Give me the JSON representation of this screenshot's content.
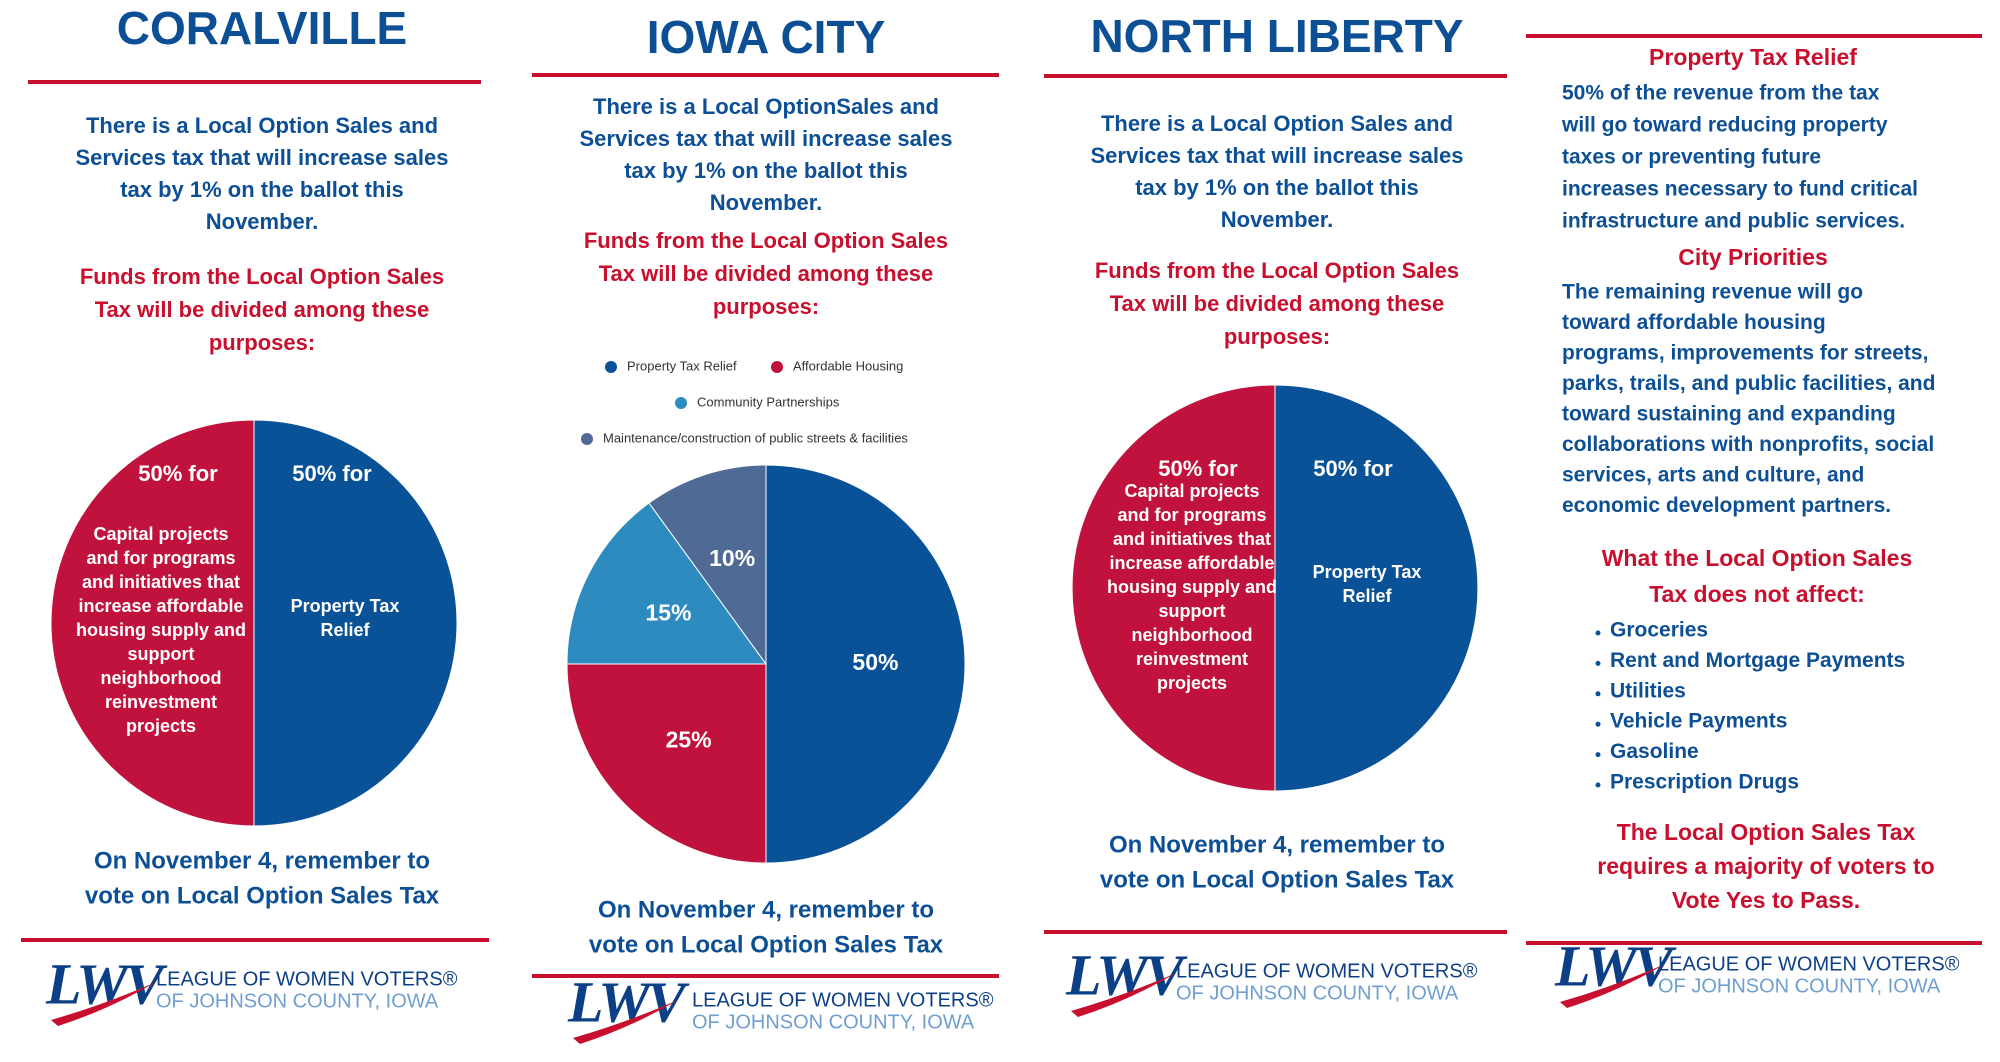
{
  "panels": [
    {
      "title": "CORALVILLE",
      "intro": [
        "There is a Local Option Sales and",
        "Services tax that will increase sales",
        "tax by 1% on the ballot this",
        "November."
      ],
      "funds": [
        "Funds from the Local Option Sales",
        "Tax will be divided among these",
        "purposes:"
      ],
      "pie": {
        "type": "pie",
        "values": [
          50,
          50
        ],
        "value_labels": [
          "50% for",
          "50% for"
        ],
        "descriptions": [
          [
            "Property Tax",
            "Relief"
          ],
          [
            "Capital projects",
            "and for programs",
            "and initiatives that",
            "increase affordable",
            "housing supply and",
            "support",
            "neighborhood",
            "reinvestment",
            "projects"
          ]
        ],
        "colors": [
          "#0a5298",
          "#c0123c"
        ]
      },
      "reminder": [
        "On November 4, remember to",
        "vote on Local Option Sales Tax"
      ]
    },
    {
      "title": "IOWA CITY",
      "intro": [
        "There is a Local OptionSales and",
        "Services tax that will increase sales",
        "tax by 1% on the ballot this",
        "November."
      ],
      "funds": [
        "Funds from the Local Option Sales",
        "Tax will be divided among these",
        "purposes:"
      ],
      "pie": {
        "type": "pie",
        "names": [
          "Property Tax Relief",
          "Affordable Housing",
          "Community Partnerships",
          "Maintenance/construction of public streets & facilities"
        ],
        "values": [
          50,
          25,
          15,
          10
        ],
        "value_labels": [
          "50%",
          "25%",
          "15%",
          "10%"
        ],
        "colors": [
          "#0a5298",
          "#c0123c",
          "#2e8bc0",
          "#4f6b95"
        ]
      },
      "reminder": [
        "On November 4, remember to",
        "vote on Local Option Sales Tax"
      ]
    },
    {
      "title": "NORTH LIBERTY",
      "intro": [
        "There is a Local Option Sales and",
        "Services tax that will increase sales",
        "tax by 1% on the ballot this",
        "November."
      ],
      "funds": [
        "Funds from the Local Option Sales",
        "Tax will be divided among these",
        "purposes:"
      ],
      "pie": {
        "type": "pie",
        "values": [
          50,
          50
        ],
        "value_labels": [
          "50% for",
          "50% for"
        ],
        "descriptions": [
          [
            "Property Tax",
            "Relief"
          ],
          [
            "Capital projects",
            "and for programs",
            "and initiatives that",
            "increase affordable",
            "housing supply and",
            "support",
            "neighborhood",
            "reinvestment",
            "projects"
          ]
        ],
        "colors": [
          "#0a5298",
          "#c0123c"
        ]
      },
      "reminder": [
        "On November 4, remember to",
        "vote on Local Option Sales Tax"
      ]
    }
  ],
  "info": {
    "relief_heading": "Property Tax Relief",
    "relief_text": [
      "50% of the revenue from the tax",
      "will go toward reducing property",
      "taxes or preventing future",
      "increases necessary to fund critical",
      "infrastructure and public services."
    ],
    "priorities_heading": "City Priorities",
    "priorities_text": [
      "The remaining revenue will go",
      "toward affordable housing",
      "programs, improvements for streets,",
      "parks, trails, and public facilities, and",
      "toward sustaining and expanding",
      "collaborations with nonprofits, social",
      "services, arts and culture, and",
      "economic development partners."
    ],
    "exempt_heading": [
      "What the Local Option Sales",
      "Tax does not affect:"
    ],
    "exempt_items": [
      "Groceries",
      "Rent and Mortgage Payments",
      "Utilities",
      "Vehicle Payments",
      "Gasoline",
      "Prescription Drugs"
    ],
    "closing": [
      "The Local Option Sales Tax",
      "requires a majority of voters to",
      "Vote Yes to Pass."
    ]
  },
  "logo": {
    "mark": "LWV",
    "name": "LEAGUE OF WOMEN VOTERS®",
    "sub": "OF JOHNSON COUNTY, IOWA"
  }
}
